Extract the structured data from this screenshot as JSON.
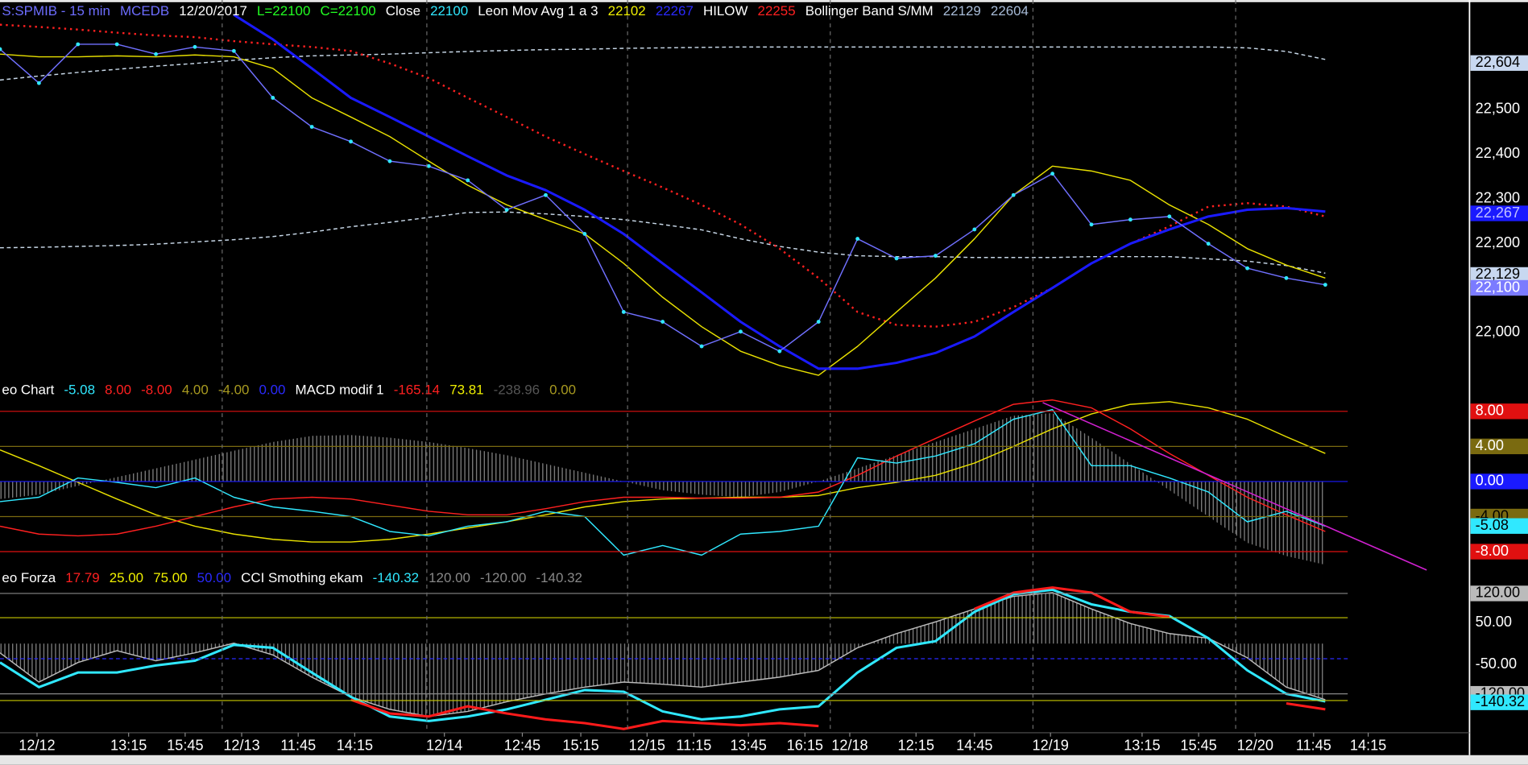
{
  "chart_data": [
    {
      "type": "line",
      "header": [
        {
          "text": "S:SPMIB - 15 min",
          "color": "#6d6dff"
        },
        {
          "text": "MCEDB",
          "color": "#6d6dff"
        },
        {
          "text": "12/20/2017",
          "color": "#ffffff"
        },
        {
          "text": "L=22100",
          "color": "#22ff22"
        },
        {
          "text": "C=22100",
          "color": "#22ff22"
        },
        {
          "text": "Close",
          "color": "#ffffff"
        },
        {
          "text": "22100",
          "color": "#30e8ff"
        },
        {
          "text": "Leon Mov Avg 1 a 3",
          "color": "#ffffff"
        },
        {
          "text": "22102",
          "color": "#f0f000"
        },
        {
          "text": "22267",
          "color": "#2a2aff"
        },
        {
          "text": "HILOW",
          "color": "#ffffff"
        },
        {
          "text": "22255",
          "color": "#ff2020"
        },
        {
          "text": "Bollinger Band S/MM",
          "color": "#ffffff"
        },
        {
          "text": "22129",
          "color": "#a8bcd8"
        },
        {
          "text": "22604",
          "color": "#a8bcd8"
        }
      ],
      "x": [
        0,
        1,
        2,
        3,
        4,
        5,
        6,
        7,
        8,
        9,
        10,
        11,
        12,
        13,
        14,
        15,
        16,
        17,
        18,
        19,
        20,
        21,
        22,
        23,
        24,
        25,
        26,
        27,
        28,
        29,
        30,
        31,
        32,
        33,
        34
      ],
      "xlim": [
        0,
        37.7
      ],
      "ylim": [
        21889,
        22745
      ],
      "yticks": [
        {
          "value": 22000,
          "label": "22,000"
        },
        {
          "value": 22100,
          "label": "22,100"
        },
        {
          "value": 22200,
          "label": "22,200"
        },
        {
          "value": 22300,
          "label": "22,300"
        },
        {
          "value": 22400,
          "label": "22,400"
        },
        {
          "value": 22500,
          "label": "22,500"
        }
      ],
      "grid": false,
      "series": [
        {
          "color": "#c8d8e8",
          "style": "dashed",
          "values": [
            22566,
            22575,
            22583,
            22590,
            22597,
            22603,
            22610,
            22616,
            22620,
            22622,
            22624,
            22627,
            22630,
            22632,
            22634,
            22635,
            22637,
            22638,
            22639,
            22640,
            22640,
            22640,
            22640,
            22640,
            22640,
            22640,
            22640,
            22640,
            22640,
            22640,
            22640,
            22640,
            22638,
            22630,
            22612
          ]
        },
        {
          "color": "#c8d8e8",
          "style": "dashed",
          "values": [
            22190,
            22191,
            22193,
            22195,
            22198,
            22203,
            22208,
            22215,
            22225,
            22237,
            22247,
            22258,
            22269,
            22270,
            22266,
            22260,
            22253,
            22242,
            22230,
            22210,
            22193,
            22180,
            22172,
            22170,
            22170,
            22168,
            22168,
            22168,
            22170,
            22170,
            22170,
            22165,
            22160,
            22150,
            22133
          ]
        },
        {
          "color": "#ff2020",
          "style": "dotted",
          "width": 2,
          "values": [
            22690,
            22685,
            22679,
            22672,
            22666,
            22662,
            22653,
            22646,
            22640,
            22631,
            22603,
            22570,
            22526,
            22483,
            22439,
            22400,
            22362,
            22325,
            22286,
            22242,
            22188,
            22122,
            22046,
            22017,
            22013,
            22024,
            22057,
            22100,
            22155,
            22199,
            22238,
            22282,
            22290,
            22282,
            22260
          ]
        },
        {
          "color": "#e8e000",
          "values": [
            22624,
            22618,
            22618,
            22620,
            22618,
            22622,
            22618,
            22592,
            22526,
            22483,
            22439,
            22384,
            22330,
            22286,
            22253,
            22221,
            22155,
            22079,
            22013,
            21958,
            21926,
            21904,
            21969,
            22046,
            22122,
            22210,
            22308,
            22373,
            22362,
            22341,
            22286,
            22242,
            22188,
            22151,
            22122
          ]
        },
        {
          "color": "#1a1aff",
          "width": 2.5,
          "values": [
            null,
            null,
            null,
            null,
            null,
            null,
            22712,
            22657,
            22592,
            22526,
            22483,
            22439,
            22395,
            22352,
            22319,
            22275,
            22221,
            22155,
            22090,
            22024,
            21969,
            21919,
            21919,
            21932,
            21954,
            21991,
            22046,
            22100,
            22155,
            22199,
            22231,
            22260,
            22275,
            22279,
            22271
          ]
        },
        {
          "color": "#7070ff",
          "marker_color": "#30e8ff",
          "values": [
            22635,
            22559,
            22646,
            22646,
            22624,
            22640,
            22631,
            22526,
            22461,
            22428,
            22384,
            22373,
            22341,
            22275,
            22308,
            22221,
            22046,
            22024,
            21969,
            22002,
            21958,
            22024,
            22210,
            22166,
            22172,
            22231,
            22308,
            22356,
            22242,
            22253,
            22260,
            22199,
            22144,
            22122,
            22107
          ]
        }
      ],
      "last_labels": [
        {
          "value": 22604,
          "label": "22,604",
          "color": "#c8d8f0",
          "text_color": "#000000"
        },
        {
          "value": 22267,
          "label": "22,267",
          "color": "#1a1aff",
          "text_color": "#c0c0ff"
        },
        {
          "value": 22129,
          "label": "22,129",
          "color": "#c8d8f0",
          "text_color": "#000000"
        },
        {
          "value": 22100,
          "label": "22,100",
          "color": "#7b7bff",
          "text_color": "#ffffff"
        }
      ]
    },
    {
      "type": "line",
      "header": [
        {
          "text": "eo Chart",
          "color": "#ffffff"
        },
        {
          "text": "-5.08",
          "color": "#30e8ff"
        },
        {
          "text": "8.00",
          "color": "#ff2020"
        },
        {
          "text": "-8.00",
          "color": "#ff2020"
        },
        {
          "text": "4.00",
          "color": "#a89a20"
        },
        {
          "text": "-4.00",
          "color": "#a89a20"
        },
        {
          "text": "0.00",
          "color": "#2a2aff"
        },
        {
          "text": "MACD modif 1",
          "color": "#ffffff"
        },
        {
          "text": "-165.14",
          "color": "#ff2020"
        },
        {
          "text": "73.81",
          "color": "#f0f000"
        },
        {
          "text": "-238.96",
          "color": "#555555"
        },
        {
          "text": "0.00",
          "color": "#a89a20"
        }
      ],
      "x": [
        0,
        1,
        2,
        3,
        4,
        5,
        6,
        7,
        8,
        9,
        10,
        11,
        12,
        13,
        14,
        15,
        16,
        17,
        18,
        19,
        20,
        21,
        22,
        23,
        24,
        25,
        26,
        27,
        28,
        29,
        30,
        31,
        32,
        33,
        34
      ],
      "xlim": [
        0,
        37.7
      ],
      "ylim": [
        -10.1,
        9.9
      ],
      "yticks": [
        {
          "value": 8,
          "label": "8.00"
        },
        {
          "value": 4,
          "label": "4.00"
        },
        {
          "value": 0,
          "label": "0.00"
        },
        {
          "value": -4,
          "label": "-4.00"
        },
        {
          "value": -8,
          "label": "-8.00"
        }
      ],
      "ytick_box_colors": [
        "#e01010",
        "#7a6a10",
        "#1a1aff",
        "#7a6a10",
        "#e01010"
      ],
      "ytick_text_colors": [
        "#ffffff",
        "#ffffff",
        "#ffffff",
        "#000000",
        "#ffffff"
      ],
      "grid": true,
      "series": [
        {
          "color": "#8a8a8a",
          "style": "histogram",
          "values": [
            -2.0,
            -1.5,
            -0.5,
            0.5,
            1.5,
            2.5,
            3.5,
            4.5,
            5.2,
            5.3,
            5.0,
            4.5,
            3.8,
            3.0,
            2.0,
            1.0,
            0.0,
            -1.0,
            -1.5,
            -1.8,
            -1.2,
            0.0,
            1.5,
            3.0,
            4.5,
            6.0,
            7.5,
            7.8,
            5.0,
            2.0,
            -1.0,
            -4.0,
            -7.0,
            -8.5,
            -9.5
          ]
        },
        {
          "color": "#e8e000",
          "values": [
            3.6,
            1.8,
            -0.1,
            -2.0,
            -3.8,
            -5.1,
            -6.0,
            -6.6,
            -6.9,
            -6.9,
            -6.6,
            -6.0,
            -5.3,
            -4.6,
            -3.8,
            -2.9,
            -2.3,
            -2.0,
            -1.9,
            -1.8,
            -1.8,
            -1.6,
            -0.7,
            -0.1,
            0.7,
            2.1,
            4.0,
            6.0,
            7.7,
            8.8,
            9.1,
            8.4,
            7.1,
            5.1,
            3.2
          ]
        },
        {
          "color": "#ff2020",
          "values": [
            -5.1,
            -6.0,
            -6.2,
            -6.0,
            -5.1,
            -4.0,
            -2.9,
            -2.0,
            -1.8,
            -2.0,
            -2.7,
            -3.4,
            -3.8,
            -3.8,
            -3.1,
            -2.3,
            -1.8,
            -1.8,
            -1.9,
            -1.9,
            -1.8,
            -1.2,
            0.7,
            2.9,
            4.9,
            6.9,
            8.8,
            9.3,
            8.4,
            6.0,
            3.2,
            0.7,
            -1.8,
            -3.8,
            -5.7
          ]
        },
        {
          "color": "#30e8ff",
          "values": [
            -2.3,
            -1.8,
            0.4,
            -0.1,
            -0.7,
            0.4,
            -1.8,
            -2.9,
            -3.4,
            -4.0,
            -5.7,
            -6.2,
            -5.1,
            -4.6,
            -3.4,
            -4.0,
            -8.4,
            -7.3,
            -8.4,
            -6.0,
            -5.7,
            -5.1,
            2.7,
            2.1,
            2.9,
            4.3,
            7.1,
            8.2,
            1.8,
            1.8,
            0.4,
            -1.2,
            -4.6,
            -3.4,
            -5.1
          ]
        }
      ],
      "trendline": {
        "x": [
          26.75,
          36.6
        ],
        "values": [
          9.0,
          -10.1
        ],
        "color": "#d020d0"
      },
      "last_labels": [
        {
          "value": -5.08,
          "label": "-5.08",
          "color": "#30e8ff",
          "text_color": "#000000"
        }
      ]
    },
    {
      "type": "line",
      "header": [
        {
          "text": "eo Forza",
          "color": "#ffffff"
        },
        {
          "text": "17.79",
          "color": "#ff2020"
        },
        {
          "text": "25.00",
          "color": "#f0f000"
        },
        {
          "text": "75.00",
          "color": "#f0f000"
        },
        {
          "text": "50.00",
          "color": "#2a2aff"
        },
        {
          "text": "CCI Smothing ekam",
          "color": "#ffffff"
        },
        {
          "text": "-140.32",
          "color": "#30e8ff"
        },
        {
          "text": "120.00",
          "color": "#888888"
        },
        {
          "text": "-120.00",
          "color": "#888888"
        },
        {
          "text": "-140.32",
          "color": "#888888"
        }
      ],
      "x": [
        0,
        1,
        2,
        3,
        4,
        5,
        6,
        7,
        8,
        9,
        10,
        11,
        12,
        13,
        14,
        15,
        16,
        17,
        18,
        19,
        20,
        21,
        22,
        23,
        24,
        25,
        26,
        27,
        28,
        29,
        30,
        31,
        32,
        33,
        34
      ],
      "xlim": [
        0,
        37.7
      ],
      "ylim": [
        -213,
        141
      ],
      "yticks": [
        {
          "value": 120,
          "label": "120.00"
        },
        {
          "value": 50,
          "label": "50.00"
        },
        {
          "value": -50,
          "label": "-50.00"
        },
        {
          "value": -120,
          "label": "-120.00"
        }
      ],
      "ytick_box_colors": [
        "#bbbbbb",
        null,
        null,
        "#bbbbbb"
      ],
      "ytick_text_colors": [
        "#000000",
        "#ffffff",
        "#ffffff",
        "#000000"
      ],
      "grid": false,
      "hlines": [
        {
          "value": 120,
          "color": "#888888"
        },
        {
          "value": 62,
          "color": "#c8c800"
        },
        {
          "value": -36,
          "color": "#2a2aff",
          "dashed": true
        },
        {
          "value": -120,
          "color": "#888888"
        },
        {
          "value": -136,
          "color": "#c8c800"
        }
      ],
      "series": [
        {
          "color": "#bbbbbb",
          "histogram": true,
          "values": [
            -22,
            -92,
            -45,
            -17,
            -41,
            -22,
            1,
            -27,
            -80,
            -127,
            -157,
            -174,
            -162,
            -139,
            -120,
            -104,
            -92,
            -97,
            -104,
            -92,
            -80,
            -64,
            -10,
            24,
            52,
            83,
            113,
            122,
            83,
            48,
            24,
            13,
            -34,
            -104,
            -134
          ]
        },
        {
          "color": "#30e8ff",
          "width": 2.5,
          "values": [
            -45,
            -104,
            -69,
            -69,
            -52,
            -41,
            -3,
            -10,
            -69,
            -127,
            -174,
            -185,
            -174,
            -157,
            -134,
            -111,
            -115,
            -162,
            -181,
            -174,
            -157,
            -150,
            -69,
            -10,
            6,
            76,
            118,
            129,
            94,
            76,
            66,
            13,
            -64,
            -120,
            -138
          ]
        },
        {
          "color": "#ff1a1a",
          "width": 2.5,
          "values": [
            null,
            null,
            null,
            null,
            null,
            null,
            null,
            null,
            null,
            -134,
            -167,
            -174,
            -150,
            -167,
            -181,
            -190,
            -204,
            -185,
            -190,
            -195,
            -190,
            -197,
            null,
            null,
            null,
            83,
            122,
            134,
            122,
            76,
            64,
            null,
            null,
            -143,
            -157
          ]
        }
      ],
      "last_labels": [
        {
          "value": -140.32,
          "label": "-140.32",
          "color": "#30e8ff",
          "text_color": "#000000"
        }
      ],
      "xticks": [
        {
          "value": 0.95,
          "label": "12/12"
        },
        {
          "value": 3.3,
          "label": "13:15"
        },
        {
          "value": 4.75,
          "label": "15:45"
        },
        {
          "value": 6.2,
          "label": "12/13"
        },
        {
          "value": 7.65,
          "label": "11:45"
        },
        {
          "value": 9.1,
          "label": "14:15"
        },
        {
          "value": 11.4,
          "label": "12/14"
        },
        {
          "value": 13.4,
          "label": "12:45"
        },
        {
          "value": 14.9,
          "label": "15:15"
        },
        {
          "value": 16.6,
          "label": "12/15"
        },
        {
          "value": 17.8,
          "label": "11:15"
        },
        {
          "value": 19.2,
          "label": "13:45"
        },
        {
          "value": 20.65,
          "label": "16:15"
        },
        {
          "value": 21.8,
          "label": "12/18"
        },
        {
          "value": 23.5,
          "label": "12:15"
        },
        {
          "value": 25.0,
          "label": "14:45"
        },
        {
          "value": 26.95,
          "label": "12/19"
        },
        {
          "value": 29.3,
          "label": "13:15"
        },
        {
          "value": 30.75,
          "label": "15:45"
        },
        {
          "value": 32.2,
          "label": "12/20"
        },
        {
          "value": 33.7,
          "label": "11:45"
        },
        {
          "value": 35.1,
          "label": "14:15"
        }
      ],
      "day_lines": [
        5.7,
        10.95,
        16.1,
        21.3,
        26.5,
        31.7
      ]
    }
  ]
}
